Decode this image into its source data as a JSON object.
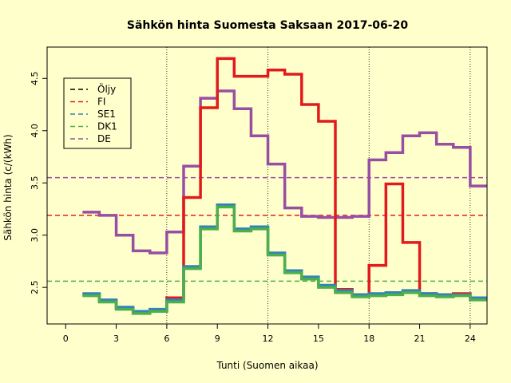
{
  "chart_data": {
    "type": "line",
    "title": "Sähkön hinta Suomesta Saksaan 2017-06-20",
    "xlabel": "Tunti (Suomen aikaa)",
    "ylabel": "Sähkön hinta (c/(kWh)",
    "xlim": [
      -1.1,
      25
    ],
    "ylim": [
      2.15,
      4.8
    ],
    "xticks": [
      0,
      3,
      6,
      9,
      12,
      15,
      18,
      21,
      24
    ],
    "yticks": [
      2.5,
      3.0,
      3.5,
      4.0,
      4.5
    ],
    "vlines": [
      6,
      12,
      18,
      24
    ],
    "legend_position": "top-left",
    "series": [
      {
        "name": "Öljy",
        "color": "#000000",
        "values": []
      },
      {
        "name": "FI",
        "color": "#e31a1c",
        "hline": 3.19,
        "x": [
          1,
          2,
          3,
          4,
          5,
          6,
          7,
          8,
          9,
          10,
          11,
          12,
          13,
          14,
          15,
          16,
          17,
          18,
          19,
          20,
          21,
          22,
          23,
          24,
          25
        ],
        "values": [
          2.43,
          2.37,
          2.3,
          2.26,
          2.28,
          2.4,
          3.36,
          4.22,
          4.69,
          4.52,
          4.52,
          4.58,
          4.54,
          4.25,
          4.09,
          2.48,
          2.43,
          2.71,
          3.49,
          2.93,
          2.44,
          2.43,
          2.44,
          2.4,
          2.4
        ]
      },
      {
        "name": "SE1",
        "color": "#3182bd",
        "hline": null,
        "x": [
          1,
          2,
          3,
          4,
          5,
          6,
          7,
          8,
          9,
          10,
          11,
          12,
          13,
          14,
          15,
          16,
          17,
          18,
          19,
          20,
          21,
          22,
          23,
          24,
          25
        ],
        "values": [
          2.44,
          2.38,
          2.31,
          2.27,
          2.29,
          2.38,
          2.7,
          3.08,
          3.29,
          3.06,
          3.08,
          2.83,
          2.66,
          2.6,
          2.52,
          2.47,
          2.43,
          2.44,
          2.45,
          2.47,
          2.44,
          2.43,
          2.43,
          2.4,
          2.4
        ]
      },
      {
        "name": "DK1",
        "color": "#4daf4a",
        "hline": 2.56,
        "x": [
          1,
          2,
          3,
          4,
          5,
          6,
          7,
          8,
          9,
          10,
          11,
          12,
          13,
          14,
          15,
          16,
          17,
          18,
          19,
          20,
          21,
          22,
          23,
          24,
          25
        ],
        "values": [
          2.42,
          2.36,
          2.29,
          2.25,
          2.27,
          2.36,
          2.68,
          3.06,
          3.27,
          3.04,
          3.06,
          2.81,
          2.64,
          2.58,
          2.5,
          2.45,
          2.41,
          2.42,
          2.43,
          2.45,
          2.42,
          2.41,
          2.42,
          2.38,
          2.38
        ]
      },
      {
        "name": "DE",
        "color": "#984ea3",
        "hline": 3.55,
        "x": [
          1,
          2,
          3,
          4,
          5,
          6,
          7,
          8,
          9,
          10,
          11,
          12,
          13,
          14,
          15,
          16,
          17,
          18,
          19,
          20,
          21,
          22,
          23,
          24,
          25
        ],
        "values": [
          3.22,
          3.19,
          3.0,
          2.85,
          2.83,
          3.03,
          3.66,
          4.31,
          4.38,
          4.21,
          3.95,
          3.68,
          3.26,
          3.18,
          3.17,
          3.17,
          3.18,
          3.72,
          3.79,
          3.95,
          3.98,
          3.87,
          3.84,
          3.47,
          3.47
        ]
      }
    ]
  }
}
